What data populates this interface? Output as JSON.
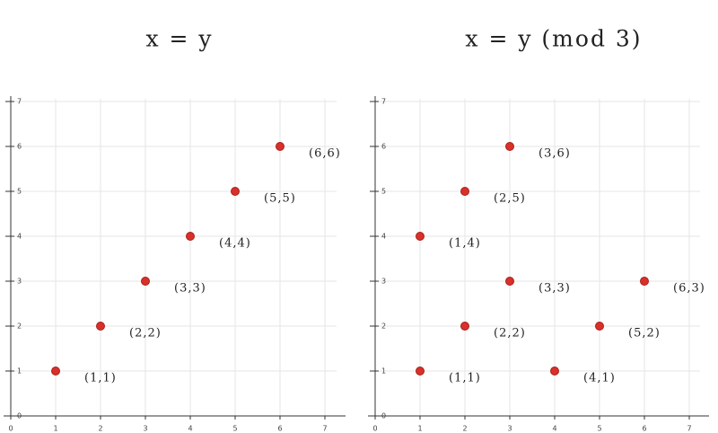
{
  "chart_data": [
    {
      "type": "scatter",
      "title": "x = y",
      "x": [
        1,
        2,
        3,
        4,
        5,
        6
      ],
      "y": [
        1,
        2,
        3,
        4,
        5,
        6
      ],
      "point_labels": [
        "(1,1)",
        "(2,2)",
        "(3,3)",
        "(4,4)",
        "(5,5)",
        "(6,6)"
      ],
      "color": "#d9302a",
      "xlim": [
        0,
        7
      ],
      "ylim": [
        0,
        7
      ],
      "xticks": [
        0,
        1,
        2,
        3,
        4,
        5,
        6,
        7
      ],
      "yticks": [
        0,
        1,
        2,
        3,
        4,
        5,
        6,
        7
      ],
      "grid": true
    },
    {
      "type": "scatter",
      "title": "x = y (mod 3)",
      "x": [
        1,
        2,
        3,
        1,
        2,
        3,
        4,
        5,
        6
      ],
      "y": [
        4,
        5,
        6,
        1,
        2,
        3,
        1,
        2,
        3
      ],
      "point_labels": [
        "(1,4)",
        "(2,5)",
        "(3,6)",
        "(1,1)",
        "(2,2)",
        "(3,3)",
        "(4,1)",
        "(5,2)",
        "(6,3)"
      ],
      "color": "#d9302a",
      "xlim": [
        0,
        7
      ],
      "ylim": [
        0,
        7
      ],
      "xticks": [
        0,
        1,
        2,
        3,
        4,
        5,
        6,
        7
      ],
      "yticks": [
        0,
        1,
        2,
        3,
        4,
        5,
        6,
        7
      ],
      "grid": true
    }
  ]
}
